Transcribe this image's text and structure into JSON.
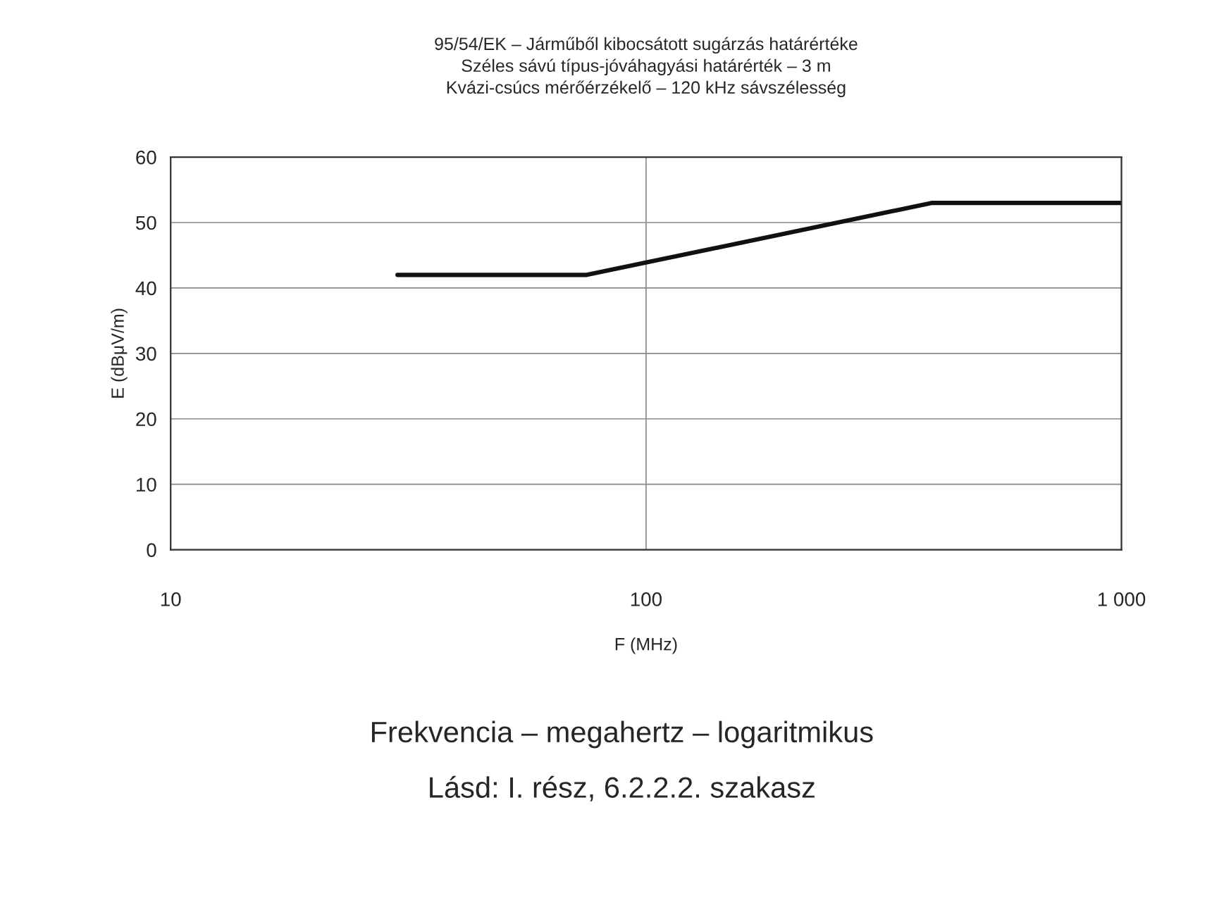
{
  "chart_data": {
    "type": "line",
    "title": "95/54/EK – Járműből kibocsátott sugárzás határértéke\nSzéles sávú típus-jóváhagyási határérték – 3 m\nKvázi-csúcs mérőérzékelő – 120 kHz sávszélesség",
    "xlabel": "F (MHz)",
    "ylabel": "E (dBμV/m)",
    "series": [
      {
        "color": "#111111",
        "x": [
          30,
          75,
          400,
          1000
        ],
        "values": [
          42,
          42,
          53,
          53
        ]
      }
    ],
    "log": "x",
    "xlim": [
      10,
      1000
    ],
    "xticks": [
      10,
      100,
      {
        "value": 1000,
        "label": "1 000"
      }
    ],
    "ylim": [
      0,
      60
    ],
    "yticks": [
      0,
      10,
      20,
      30,
      40,
      50,
      60
    ],
    "grid": true,
    "annotations": [
      "Frekvencia – megahertz – logaritmikus",
      "Lásd: I. rész, 6.2.2.2. szakasz"
    ]
  }
}
